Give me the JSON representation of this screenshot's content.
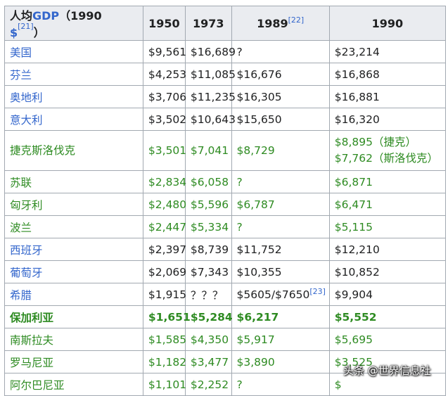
{
  "header": {
    "label_prefix": "人均",
    "label_link": "GDP",
    "label_mid": "（1990 ",
    "label_currency": "$",
    "label_ref": "[21]",
    "label_suffix": "）",
    "years": [
      "1950",
      "1973",
      "1989",
      "1990"
    ],
    "ref_1989": "[22]"
  },
  "rows": [
    {
      "country": "美国",
      "v1950": "$9,561",
      "v1973": "$16,689",
      "v1989": "?",
      "v1990": "$23,214",
      "color": "#202122",
      "bold": false
    },
    {
      "country": "芬兰",
      "v1950": "$4,253",
      "v1973": "$11,085",
      "v1989": "$16,676",
      "v1990": "$16,868",
      "color": "#202122",
      "bold": false
    },
    {
      "country": "奥地利",
      "v1950": "$3,706",
      "v1973": "$11,235",
      "v1989": "$16,305",
      "v1990": "$16,881",
      "color": "#202122",
      "bold": false
    },
    {
      "country": "意大利",
      "v1950": "$3,502",
      "v1973": "$10,643",
      "v1989": "$15,650",
      "v1990": "$16,320",
      "color": "#202122",
      "bold": false
    },
    {
      "country": "捷克斯洛伐克",
      "v1950": "$3,501",
      "v1973": "$7,041",
      "v1989": "$8,729",
      "v1990": "$8,895（捷克）",
      "v1990b": "$7,762（斯洛伐克）",
      "color": "#2e8b22",
      "bold": false
    },
    {
      "country": "苏联",
      "v1950": "$2,834",
      "v1973": "$6,058",
      "v1989": "?",
      "v1990": "$6,871",
      "color": "#2e8b22",
      "bold": false
    },
    {
      "country": "匈牙利",
      "v1950": "$2,480",
      "v1973": "$5,596",
      "v1989": "$6,787",
      "v1990": "$6,471",
      "color": "#2e8b22",
      "bold": false
    },
    {
      "country": "波兰",
      "v1950": "$2,447",
      "v1973": "$5,334",
      "v1989": "?",
      "v1990": "$5,115",
      "color": "#2e8b22",
      "bold": false
    },
    {
      "country": "西班牙",
      "v1950": "$2,397",
      "v1973": "$8,739",
      "v1989": "$11,752",
      "v1990": "$12,210",
      "color": "#202122",
      "bold": false
    },
    {
      "country": "葡萄牙",
      "v1950": "$2,069",
      "v1973": "$7,343",
      "v1989": "$10,355",
      "v1990": "$10,852",
      "color": "#202122",
      "bold": false
    },
    {
      "country": "希腊",
      "v1950": "$1,915",
      "v1973": "？？？",
      "v1989": "$5605/$7650",
      "ref": "[23]",
      "v1990": "$9,904",
      "color": "#202122",
      "bold": false
    },
    {
      "country": "保加利亚",
      "v1950": "$1,651",
      "v1973": "$5,284",
      "v1989": "$6,217",
      "v1990": "$5,552",
      "color": "#2e8b22",
      "bold": true
    },
    {
      "country": "南斯拉夫",
      "v1950": "$1,585",
      "v1973": "$4,350",
      "v1989": "$5,917",
      "v1990": "$5,695",
      "color": "#2e8b22",
      "bold": false
    },
    {
      "country": "罗马尼亚",
      "v1950": "$1,182",
      "v1973": "$3,477",
      "v1989": "$3,890",
      "v1990": "$3,525",
      "color": "#2e8b22",
      "bold": false
    },
    {
      "country": "阿尔巴尼亚",
      "v1950": "$1,101",
      "v1973": "$2,252",
      "v1989": "?",
      "v1990": "$",
      "color": "#2e8b22",
      "bold": false
    }
  ],
  "watermark": "头条 @世界信息社",
  "colors": {
    "link": "#3366cc",
    "green": "#2e8b22",
    "header_bg": "#eaecf0",
    "border": "#a2a9b1"
  }
}
